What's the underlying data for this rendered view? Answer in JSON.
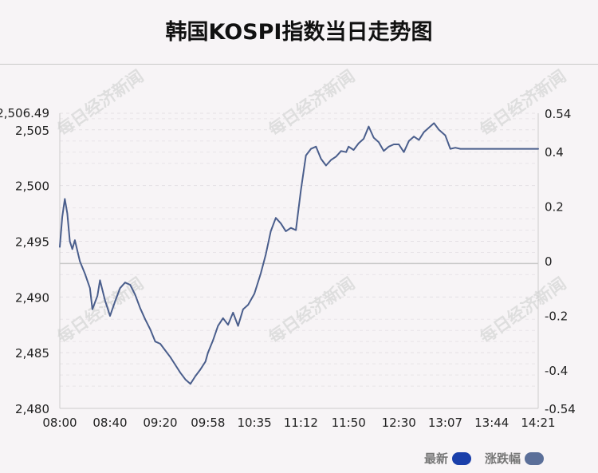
{
  "title": "韩国KOSPI指数当日走势图",
  "watermark": "每日经济新闻",
  "legend": {
    "latest_label": "最新",
    "latest_color": "#1a3faa",
    "change_label": "涨跌幅",
    "change_color": "#5b6f99"
  },
  "chart_data": {
    "type": "line",
    "title": "韩国KOSPI指数当日走势图",
    "x_tick_labels": [
      "08:00",
      "08:40",
      "09:20",
      "09:58",
      "10:35",
      "11:12",
      "11:50",
      "12:30",
      "13:07",
      "13:44",
      "14:21"
    ],
    "y_left_tick_labels": [
      "2,480",
      "2,485",
      "2,490",
      "2,495",
      "2,500",
      "2,505",
      "2,506.49"
    ],
    "y_left_ticks": [
      2480,
      2485,
      2490,
      2495,
      2500,
      2505,
      2506.49
    ],
    "y_right_tick_labels": [
      "-0.54",
      "-0.4",
      "-0.2",
      "0",
      "0.2",
      "0.4",
      "0.54"
    ],
    "ylim_left": [
      2480,
      2506.49
    ],
    "ylim_right": [
      -0.54,
      0.54
    ],
    "reference_line": 2493,
    "grid": "horizontal dashed",
    "line_color": "#4a5e8c",
    "series": [
      {
        "x": [
          "08:00",
          "08:02",
          "08:04",
          "08:06",
          "08:08",
          "08:10",
          "08:12",
          "08:16",
          "08:20",
          "08:24",
          "08:26",
          "08:30",
          "08:32",
          "08:36",
          "08:40",
          "08:44",
          "08:48",
          "08:52",
          "08:56",
          "09:00",
          "09:04",
          "09:08",
          "09:12",
          "09:16",
          "09:20",
          "09:24",
          "09:28",
          "09:32",
          "09:36",
          "09:40",
          "09:44",
          "09:48",
          "09:52",
          "09:56",
          "09:58",
          "10:02",
          "10:06",
          "10:10",
          "10:14",
          "10:18",
          "10:22",
          "10:26",
          "10:30",
          "10:35",
          "10:40",
          "10:44",
          "10:48",
          "10:52",
          "10:56",
          "11:00",
          "11:04",
          "11:08",
          "11:12",
          "11:16",
          "11:20",
          "11:24",
          "11:28",
          "11:32",
          "11:36",
          "11:40",
          "11:44",
          "11:48",
          "11:50",
          "11:54",
          "11:58",
          "12:02",
          "12:06",
          "12:10",
          "12:14",
          "12:18",
          "12:22",
          "12:26",
          "12:30",
          "12:34",
          "12:38",
          "12:42",
          "12:46",
          "12:50",
          "12:54",
          "12:58",
          "13:02",
          "13:07",
          "13:11",
          "13:15",
          "13:19",
          "13:23",
          "13:27",
          "13:31",
          "13:35",
          "13:39",
          "13:44",
          "13:48",
          "13:52",
          "13:56",
          "14:00",
          "14:04",
          "14:08",
          "14:12",
          "14:16",
          "14:21"
        ],
        "y": [
          2494.5,
          2497.2,
          2498.8,
          2497.5,
          2495.0,
          2494.3,
          2495.1,
          2493.2,
          2492.1,
          2490.8,
          2488.9,
          2490.1,
          2491.5,
          2489.7,
          2488.3,
          2489.6,
          2490.8,
          2491.3,
          2491.1,
          2490.2,
          2489.0,
          2488.0,
          2487.1,
          2486.0,
          2485.8,
          2485.2,
          2484.6,
          2483.9,
          2483.2,
          2482.6,
          2482.2,
          2482.9,
          2483.5,
          2484.2,
          2485.0,
          2486.1,
          2487.4,
          2488.1,
          2487.5,
          2488.6,
          2487.4,
          2488.9,
          2489.3,
          2490.3,
          2492.1,
          2493.8,
          2495.9,
          2497.1,
          2496.6,
          2495.9,
          2496.2,
          2496.0,
          2499.6,
          2502.7,
          2503.3,
          2503.5,
          2502.4,
          2501.8,
          2502.3,
          2502.6,
          2503.1,
          2503.0,
          2503.5,
          2503.2,
          2503.8,
          2504.2,
          2505.3,
          2504.3,
          2503.9,
          2503.1,
          2503.5,
          2503.7,
          2503.7,
          2503.0,
          2504.0,
          2504.4,
          2504.1,
          2504.8,
          2505.2,
          2505.6,
          2505.0,
          2504.5,
          2503.3,
          2503.4,
          2503.3,
          2503.3,
          2503.3,
          2503.3,
          2503.3,
          2503.3,
          2503.3,
          2503.3,
          2503.3,
          2503.3,
          2503.3,
          2503.3,
          2503.3,
          2503.3,
          2503.3,
          2503.3
        ]
      }
    ]
  }
}
